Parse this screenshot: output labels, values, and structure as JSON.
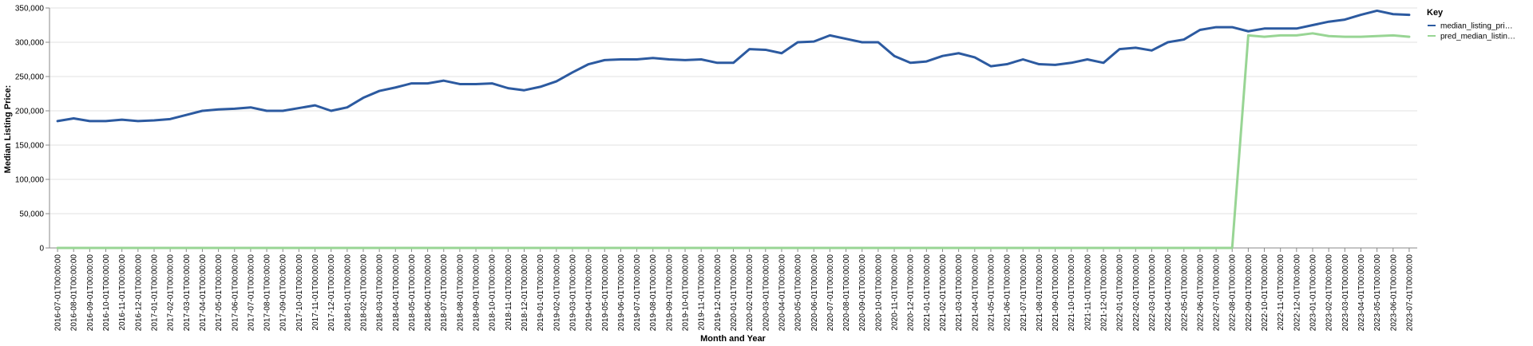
{
  "chart_data": {
    "type": "line",
    "xlabel": "Month and Year",
    "ylabel": "Median Listing Price:",
    "ylim": [
      0,
      350000
    ],
    "yticks": [
      "0",
      "50,000",
      "100,000",
      "150,000",
      "200,000",
      "250,000",
      "300,000",
      "350,000"
    ],
    "ytick_values": [
      0,
      50000,
      100000,
      150000,
      200000,
      250000,
      300000,
      350000
    ],
    "grid": true,
    "legend": {
      "title": "Key",
      "placement": "top-right",
      "entries": [
        "median_listing_pri…",
        "pred_median_listin…"
      ]
    },
    "x": [
      "2016-07-01T00:00:00",
      "2016-08-01T00:00:00",
      "2016-09-01T00:00:00",
      "2016-10-01T00:00:00",
      "2016-11-01T00:00:00",
      "2016-12-01T00:00:00",
      "2017-01-01T00:00:00",
      "2017-02-01T00:00:00",
      "2017-03-01T00:00:00",
      "2017-04-01T00:00:00",
      "2017-05-01T00:00:00",
      "2017-06-01T00:00:00",
      "2017-07-01T00:00:00",
      "2017-08-01T00:00:00",
      "2017-09-01T00:00:00",
      "2017-10-01T00:00:00",
      "2017-11-01T00:00:00",
      "2017-12-01T00:00:00",
      "2018-01-01T00:00:00",
      "2018-02-01T00:00:00",
      "2018-03-01T00:00:00",
      "2018-04-01T00:00:00",
      "2018-05-01T00:00:00",
      "2018-06-01T00:00:00",
      "2018-07-01T00:00:00",
      "2018-08-01T00:00:00",
      "2018-09-01T00:00:00",
      "2018-10-01T00:00:00",
      "2018-11-01T00:00:00",
      "2018-12-01T00:00:00",
      "2019-01-01T00:00:00",
      "2019-02-01T00:00:00",
      "2019-03-01T00:00:00",
      "2019-04-01T00:00:00",
      "2019-05-01T00:00:00",
      "2019-06-01T00:00:00",
      "2019-07-01T00:00:00",
      "2019-08-01T00:00:00",
      "2019-09-01T00:00:00",
      "2019-10-01T00:00:00",
      "2019-11-01T00:00:00",
      "2019-12-01T00:00:00",
      "2020-01-01T00:00:00",
      "2020-02-01T00:00:00",
      "2020-03-01T00:00:00",
      "2020-04-01T00:00:00",
      "2020-05-01T00:00:00",
      "2020-06-01T00:00:00",
      "2020-07-01T00:00:00",
      "2020-08-01T00:00:00",
      "2020-09-01T00:00:00",
      "2020-10-01T00:00:00",
      "2020-11-01T00:00:00",
      "2020-12-01T00:00:00",
      "2021-01-01T00:00:00",
      "2021-02-01T00:00:00",
      "2021-03-01T00:00:00",
      "2021-04-01T00:00:00",
      "2021-05-01T00:00:00",
      "2021-06-01T00:00:00",
      "2021-07-01T00:00:00",
      "2021-08-01T00:00:00",
      "2021-09-01T00:00:00",
      "2021-10-01T00:00:00",
      "2021-11-01T00:00:00",
      "2021-12-01T00:00:00",
      "2022-01-01T00:00:00",
      "2022-02-01T00:00:00",
      "2022-03-01T00:00:00",
      "2022-04-01T00:00:00",
      "2022-05-01T00:00:00",
      "2022-06-01T00:00:00",
      "2022-07-01T00:00:00",
      "2022-08-01T00:00:00",
      "2022-09-01T00:00:00",
      "2022-10-01T00:00:00",
      "2022-11-01T00:00:00",
      "2022-12-01T00:00:00",
      "2023-01-01T00:00:00",
      "2023-02-01T00:00:00",
      "2023-03-01T00:00:00",
      "2023-04-01T00:00:00",
      "2023-05-01T00:00:00",
      "2023-06-01T00:00:00",
      "2023-07-01T00:00:00"
    ],
    "series": [
      {
        "name": "median_listing_pri…",
        "color": "#2c5aa0",
        "values": [
          185000,
          189000,
          185000,
          185000,
          187000,
          185000,
          186000,
          188000,
          194000,
          200000,
          202000,
          203000,
          205000,
          200000,
          200000,
          204000,
          208000,
          200000,
          205000,
          219000,
          229000,
          234000,
          240000,
          240000,
          244000,
          239000,
          239000,
          240000,
          233000,
          230000,
          235000,
          243000,
          256000,
          268000,
          274000,
          275000,
          275000,
          277000,
          275000,
          274000,
          275000,
          270000,
          270000,
          290000,
          289000,
          284000,
          300000,
          301000,
          310000,
          305000,
          300000,
          300000,
          280000,
          270000,
          272000,
          280000,
          284000,
          278000,
          265000,
          268000,
          275000,
          268000,
          267000,
          270000,
          275000,
          270000,
          290000,
          292000,
          288000,
          300000,
          304000,
          318000,
          322000,
          322000,
          316000,
          320000,
          320000,
          320000,
          325000,
          330000,
          333000,
          340000,
          346000,
          341000,
          340000
        ]
      },
      {
        "name": "pred_median_listin…",
        "color": "#98d594",
        "values": [
          0,
          0,
          0,
          0,
          0,
          0,
          0,
          0,
          0,
          0,
          0,
          0,
          0,
          0,
          0,
          0,
          0,
          0,
          0,
          0,
          0,
          0,
          0,
          0,
          0,
          0,
          0,
          0,
          0,
          0,
          0,
          0,
          0,
          0,
          0,
          0,
          0,
          0,
          0,
          0,
          0,
          0,
          0,
          0,
          0,
          0,
          0,
          0,
          0,
          0,
          0,
          0,
          0,
          0,
          0,
          0,
          0,
          0,
          0,
          0,
          0,
          0,
          0,
          0,
          0,
          0,
          0,
          0,
          0,
          0,
          0,
          0,
          0,
          0,
          310000,
          308000,
          310000,
          310000,
          313000,
          309000,
          308000,
          308000,
          309000,
          310000,
          308000
        ]
      }
    ]
  }
}
